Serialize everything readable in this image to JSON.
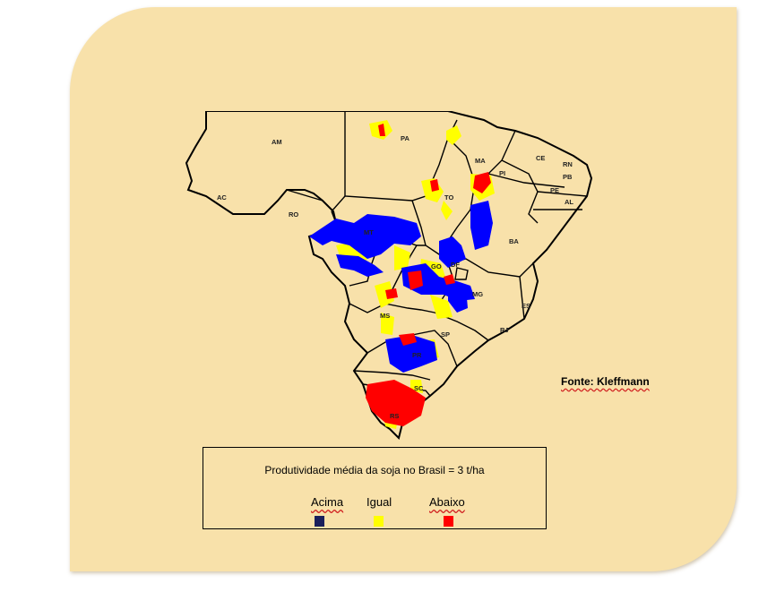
{
  "source": "Fonte: Kleffmann",
  "legend": {
    "title": "Produtividade média da soja no Brasil = 3 t/ha",
    "items": [
      {
        "label": "Acima",
        "color": "#1a1f5c"
      },
      {
        "label": "Igual",
        "color": "#ffff00"
      },
      {
        "label": "Abaixo",
        "color": "#ff0000"
      }
    ]
  },
  "states": [
    "AM",
    "PA",
    "MA",
    "PI",
    "CE",
    "RN",
    "PB",
    "PE",
    "AL",
    "AC",
    "RO",
    "TO",
    "BA",
    "MT",
    "GO",
    "DF",
    "MG",
    "ES",
    "MS",
    "SP",
    "RJ",
    "PR",
    "SC",
    "RS"
  ],
  "colors": {
    "panel": "#f8e1aa",
    "above": "#0000ff",
    "equal": "#ffff00",
    "below": "#ff0000"
  }
}
